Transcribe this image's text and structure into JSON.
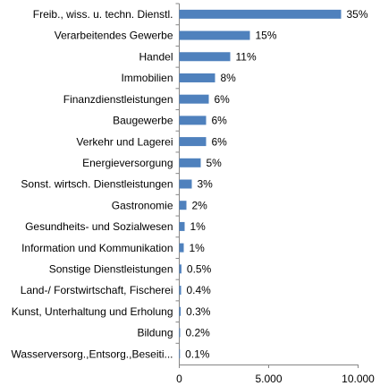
{
  "chart_data": {
    "type": "bar",
    "orientation": "horizontal",
    "categories": [
      "Freib., wiss. u. techn. Dienstl.",
      "Verarbeitendes Gewerbe",
      "Handel",
      "Immobilien",
      "Finanzdienstleistungen",
      "Baugewerbe",
      "Verkehr und Lagerei",
      "Energieversorgung",
      "Sonst. wirtsch. Dienstleistungen",
      "Gastronomie",
      "Gesundheits- und Sozialwesen",
      "Information und Kommunikation",
      "Sonstige Dienstleistungen",
      "Land-/ Forstwirtschaft, Fischerei",
      "Kunst, Unterhaltung und Erholung",
      "Bildung",
      "Wasserversorg.,Entsorg.,Beseiti..."
    ],
    "values": [
      9050,
      3950,
      2850,
      2000,
      1650,
      1500,
      1500,
      1200,
      700,
      400,
      300,
      250,
      120,
      100,
      80,
      50,
      30
    ],
    "value_labels": [
      "35%",
      "15%",
      "11%",
      "8%",
      "6%",
      "6%",
      "6%",
      "5%",
      "3%",
      "2%",
      "1%",
      "1%",
      "0.5%",
      "0.4%",
      "0.3%",
      "0.2%",
      "0.1%"
    ],
    "color": "#4f81bd",
    "xlim": [
      0,
      10000
    ],
    "xticks": [
      0,
      {
        "value": 5000,
        "label": "5.000"
      },
      {
        "value": 10000,
        "label": "10.000"
      }
    ],
    "grid": false
  }
}
